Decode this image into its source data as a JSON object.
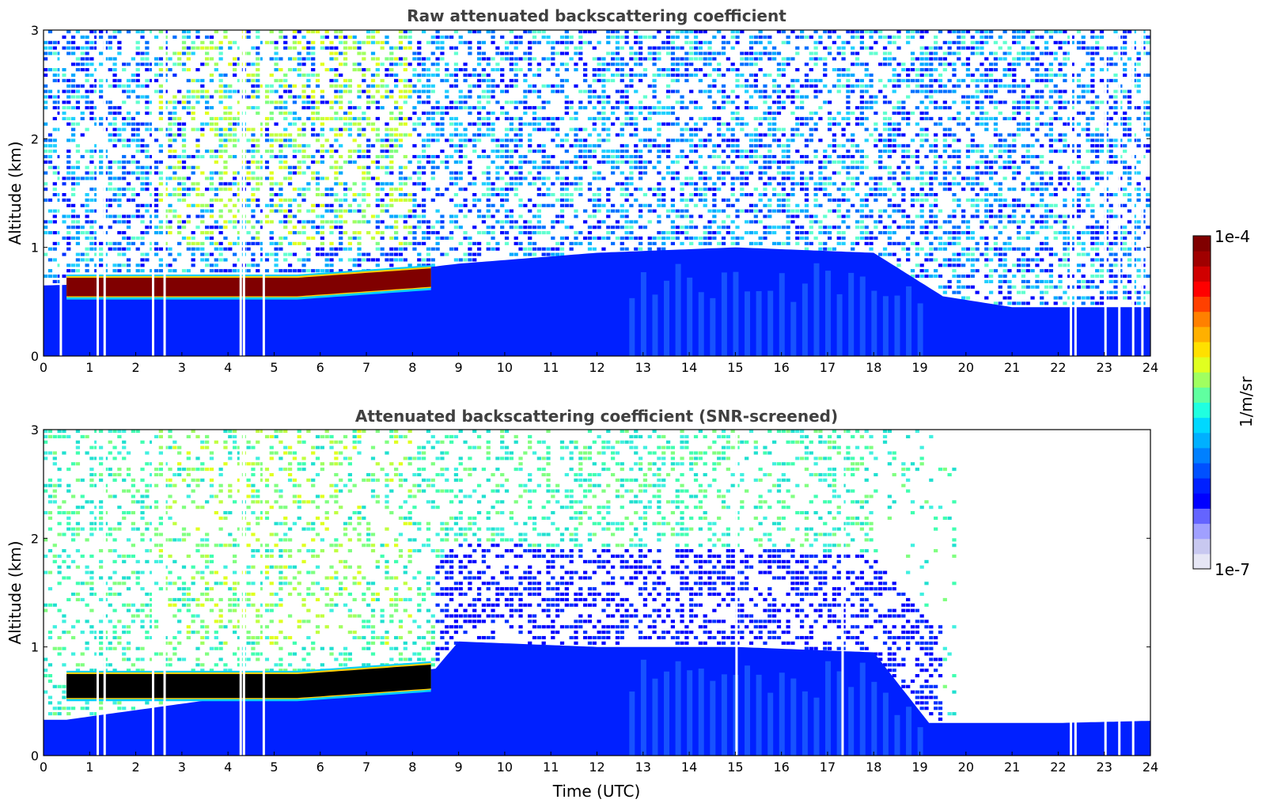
{
  "chart_data": [
    {
      "type": "heatmap",
      "title": "Raw attenuated backscattering coefficient",
      "xlabel": "",
      "ylabel": "Altitude (km)",
      "xlim": [
        0,
        24
      ],
      "ylim": [
        0,
        3
      ],
      "x_ticks": [
        "0",
        "1",
        "2",
        "3",
        "4",
        "5",
        "6",
        "7",
        "8",
        "9",
        "10",
        "11",
        "12",
        "13",
        "14",
        "15",
        "16",
        "17",
        "18",
        "19",
        "20",
        "21",
        "22",
        "23",
        "24"
      ],
      "y_ticks": [
        "0",
        "1",
        "2",
        "3"
      ],
      "colorscale": "jet",
      "color_range": [
        "1e-7",
        "1e-4"
      ],
      "features": {
        "cloud_layer": {
          "x_range_utc": [
            0.5,
            8.4
          ],
          "base_km": 0.55,
          "top_km": 0.72,
          "level": "1e-4"
        },
        "aerosol_layer_top_km": [
          {
            "x": 0,
            "y": 0.65
          },
          {
            "x": 3,
            "y": 0.68
          },
          {
            "x": 6,
            "y": 0.7
          },
          {
            "x": 9,
            "y": 0.85
          },
          {
            "x": 12,
            "y": 0.95
          },
          {
            "x": 15,
            "y": 1.0
          },
          {
            "x": 18,
            "y": 0.95
          },
          {
            "x": 19.5,
            "y": 0.55
          },
          {
            "x": 21,
            "y": 0.45
          },
          {
            "x": 24,
            "y": 0.45
          }
        ],
        "enhanced_signal_aloft_utc": [
          2.5,
          8.0
        ],
        "data_gaps_utc": [
          0.35,
          1.15,
          1.3,
          2.35,
          2.6,
          4.25,
          4.32,
          4.75,
          22.25,
          22.35,
          23.0,
          23.3,
          23.6,
          23.8
        ]
      }
    },
    {
      "type": "heatmap",
      "title": "Attenuated backscattering coefficient (SNR-screened)",
      "xlabel": "Time (UTC)",
      "ylabel": "Altitude (km)",
      "xlim": [
        0,
        24
      ],
      "ylim": [
        0,
        3
      ],
      "x_ticks": [
        "0",
        "1",
        "2",
        "3",
        "4",
        "5",
        "6",
        "7",
        "8",
        "9",
        "10",
        "11",
        "12",
        "13",
        "14",
        "15",
        "16",
        "17",
        "18",
        "19",
        "20",
        "21",
        "22",
        "23",
        "24"
      ],
      "y_ticks": [
        "0",
        "1",
        "2",
        "3"
      ],
      "colorscale": "jet",
      "color_range": [
        "1e-7",
        "1e-4"
      ],
      "features": {
        "cloud_layer": {
          "x_range_utc": [
            0.5,
            8.4
          ],
          "base_km": 0.53,
          "top_km": 0.75,
          "level": ">1e-4 (black)"
        },
        "boundary_layer_top_km": [
          {
            "x": 0,
            "y": 0.33
          },
          {
            "x": 0.5,
            "y": 0.33
          },
          {
            "x": 8.5,
            "y": 0.8
          },
          {
            "x": 9,
            "y": 1.05
          },
          {
            "x": 12,
            "y": 1.0
          },
          {
            "x": 15,
            "y": 1.0
          },
          {
            "x": 18,
            "y": 0.95
          },
          {
            "x": 19.2,
            "y": 0.3
          },
          {
            "x": 22,
            "y": 0.3
          },
          {
            "x": 24,
            "y": 0.32
          }
        ],
        "screened_out_region_utc": [
          19.8,
          24
        ],
        "data_gaps_utc": [
          1.15,
          1.3,
          2.35,
          2.6,
          4.25,
          4.32,
          4.75,
          15.0,
          17.3,
          22.25,
          22.35,
          23.0,
          23.3,
          23.6
        ]
      }
    }
  ],
  "colorbar": {
    "label": "1/m/sr",
    "max_label": "1e-4",
    "min_label": "1e-7",
    "colors": [
      "#e6e6f5",
      "#c8c8f0",
      "#a0a0ff",
      "#6464ff",
      "#0000ff",
      "#0020ff",
      "#0050ff",
      "#0080ff",
      "#00b0ff",
      "#00d8ff",
      "#20ffe0",
      "#60ffa0",
      "#a0ff60",
      "#e0ff20",
      "#ffe000",
      "#ffb000",
      "#ff8000",
      "#ff4000",
      "#ff0000",
      "#d00000",
      "#a00000",
      "#800000"
    ]
  }
}
